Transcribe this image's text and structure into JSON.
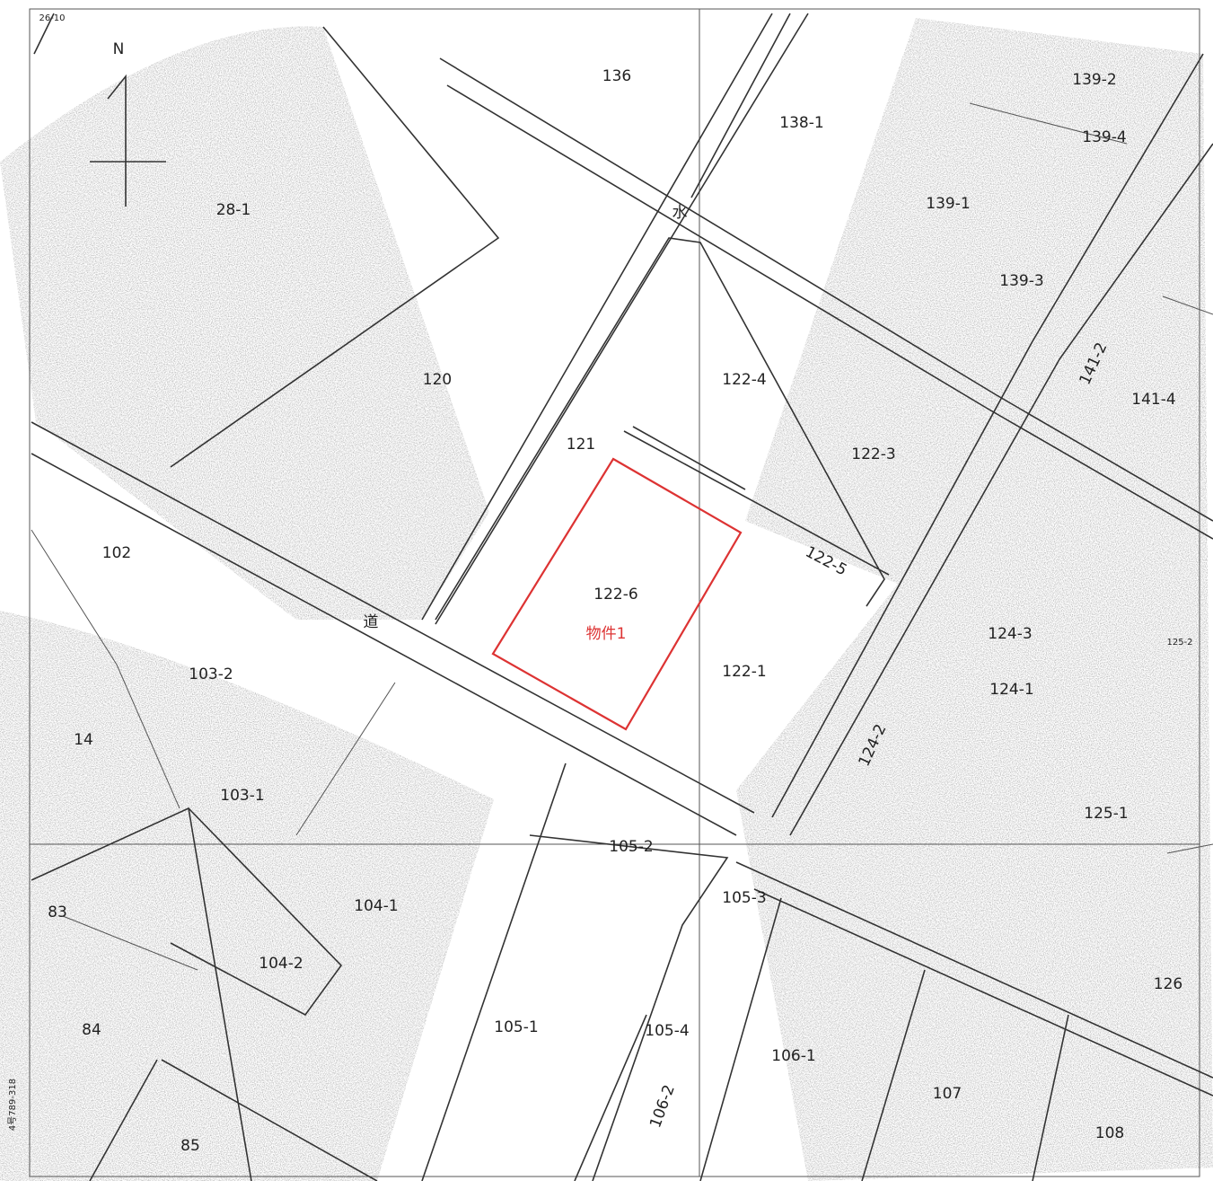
{
  "map": {
    "north": "N",
    "sheet_corner": "26-10",
    "margin_note": "4号789-318",
    "road_label": "道",
    "water_label": "水",
    "target": {
      "parcel": "122-6",
      "label": "物件1"
    },
    "parcels": [
      "136",
      "138-1",
      "139-2",
      "139-4",
      "139-1",
      "139-3",
      "28-1",
      "120",
      "121",
      "122-4",
      "122-3",
      "122-5",
      "122-1",
      "102",
      "103-2",
      "14",
      "103-1",
      "105-2",
      "105-3",
      "104-1",
      "104-2",
      "83",
      "84",
      "85",
      "105-1",
      "105-4",
      "106-1",
      "106-2",
      "107",
      "108",
      "126",
      "125-1",
      "124-1",
      "124-3",
      "124-2",
      "125-2",
      "141-2",
      "141-4"
    ]
  }
}
